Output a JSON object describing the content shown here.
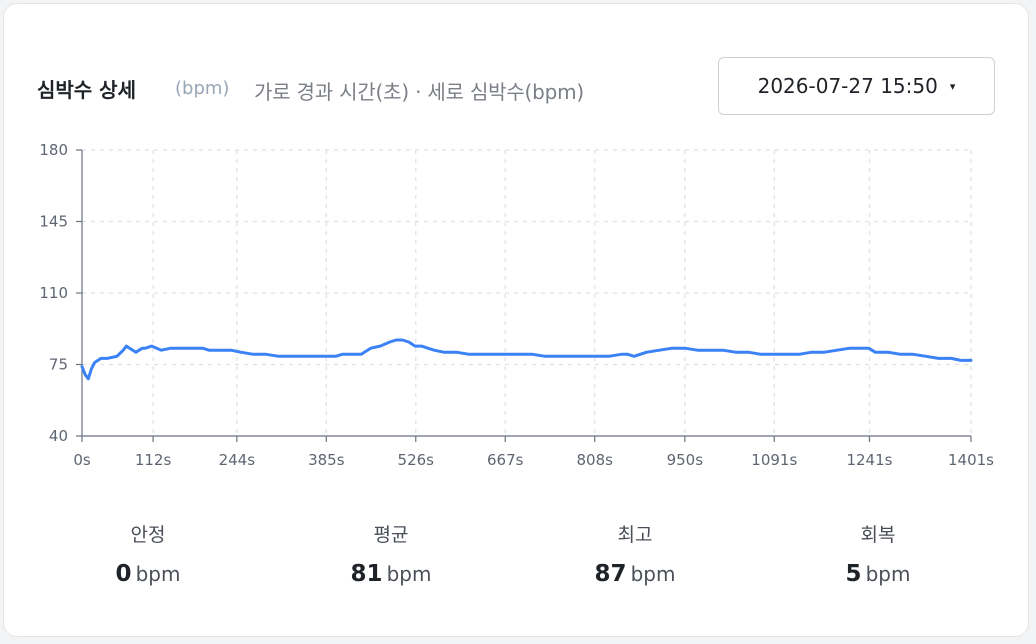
{
  "card": {
    "title": "심박수 상세",
    "unit": "(bpm)",
    "subtitle": "가로 경과 시간(초) · 세로 심박수(bpm)"
  },
  "date_select": {
    "value": "2026-07-27 15:50",
    "caret": "▾"
  },
  "chart_data": {
    "type": "line",
    "title": "",
    "xlabel": "",
    "ylabel": "",
    "xlim": [
      0,
      1401
    ],
    "ylim": [
      40,
      180
    ],
    "yticks": [
      40,
      75,
      110,
      145,
      180
    ],
    "xticks": [
      0,
      112,
      244,
      385,
      526,
      667,
      808,
      950,
      1091,
      1241,
      1401
    ],
    "xtick_labels": [
      "0s",
      "112s",
      "244s",
      "385s",
      "526s",
      "667s",
      "808s",
      "950s",
      "1091s",
      "1241s",
      "1401s"
    ],
    "ytick_labels": [
      "40",
      "75",
      "110",
      "145",
      "180"
    ],
    "grid": true,
    "color": "#3b82f6",
    "series": [
      {
        "x": [
          0,
          5,
          10,
          15,
          20,
          30,
          40,
          55,
          65,
          70,
          75,
          85,
          95,
          100,
          110,
          125,
          140,
          150,
          170,
          190,
          200,
          215,
          235,
          250,
          270,
          290,
          310,
          330,
          350,
          370,
          390,
          400,
          410,
          420,
          430,
          440,
          455,
          470,
          485,
          495,
          505,
          515,
          525,
          535,
          545,
          555,
          570,
          590,
          610,
          630,
          650,
          670,
          690,
          710,
          730,
          750,
          770,
          790,
          810,
          830,
          850,
          860,
          870,
          890,
          910,
          930,
          950,
          970,
          990,
          1010,
          1030,
          1050,
          1070,
          1090,
          1110,
          1130,
          1150,
          1170,
          1190,
          1210,
          1230,
          1240,
          1250,
          1270,
          1290,
          1310,
          1330,
          1350,
          1370,
          1385,
          1401
        ],
        "values": [
          74,
          70,
          68,
          73,
          76,
          78,
          78,
          79,
          82,
          84,
          83,
          81,
          83,
          83,
          84,
          82,
          83,
          83,
          83,
          83,
          82,
          82,
          82,
          81,
          80,
          80,
          79,
          79,
          79,
          79,
          79,
          79,
          80,
          80,
          80,
          80,
          83,
          84,
          86,
          87,
          87,
          86,
          84,
          84,
          83,
          82,
          81,
          81,
          80,
          80,
          80,
          80,
          80,
          80,
          79,
          79,
          79,
          79,
          79,
          79,
          80,
          80,
          79,
          81,
          82,
          83,
          83,
          82,
          82,
          82,
          81,
          81,
          80,
          80,
          80,
          80,
          81,
          81,
          82,
          83,
          83,
          83,
          81,
          81,
          80,
          80,
          79,
          78,
          78,
          77,
          77
        ]
      }
    ]
  },
  "stats": [
    {
      "label": "안정",
      "value": "0",
      "unit": "bpm"
    },
    {
      "label": "평균",
      "value": "81",
      "unit": "bpm"
    },
    {
      "label": "최고",
      "value": "87",
      "unit": "bpm"
    },
    {
      "label": "회복",
      "value": "5",
      "unit": "bpm"
    }
  ]
}
